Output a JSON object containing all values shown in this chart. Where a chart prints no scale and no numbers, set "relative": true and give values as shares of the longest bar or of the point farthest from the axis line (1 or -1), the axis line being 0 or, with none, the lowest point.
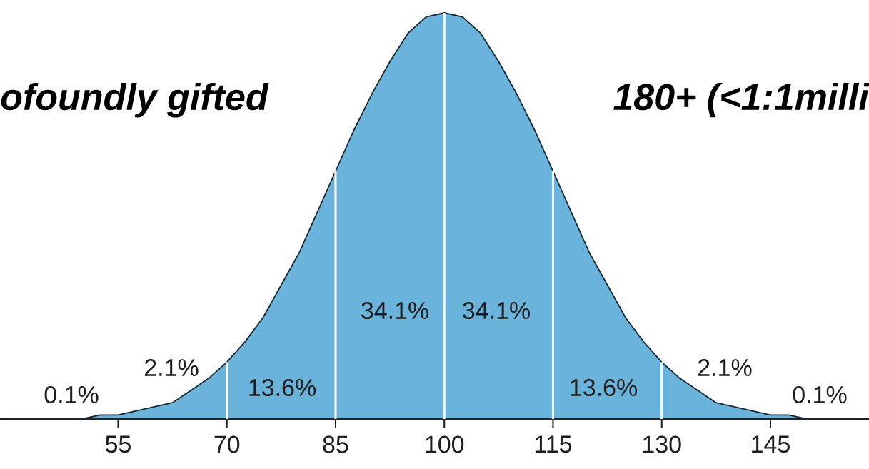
{
  "chart_data": {
    "type": "area",
    "relative": true,
    "x": [
      40,
      42.5,
      45,
      47.5,
      50,
      52.5,
      55,
      57.5,
      60,
      62.5,
      65,
      67.5,
      70,
      72.5,
      75,
      77.5,
      80,
      82.5,
      85,
      87.5,
      90,
      92.5,
      95,
      97.5,
      100,
      102.5,
      105,
      107.5,
      110,
      112.5,
      115,
      117.5,
      120,
      122.5,
      125,
      127.5,
      130,
      132.5,
      135,
      137.5,
      140,
      142.5,
      145,
      147.5,
      150,
      152.5,
      155,
      157.5
    ],
    "values": [
      0,
      0,
      0,
      0,
      0,
      0.01,
      0.01,
      0.02,
      0.03,
      0.04,
      0.07,
      0.1,
      0.14,
      0.19,
      0.25,
      0.33,
      0.41,
      0.51,
      0.61,
      0.71,
      0.8,
      0.88,
      0.95,
      0.99,
      1,
      0.99,
      0.95,
      0.88,
      0.8,
      0.71,
      0.61,
      0.51,
      0.41,
      0.33,
      0.25,
      0.19,
      0.14,
      0.1,
      0.07,
      0.04,
      0.03,
      0.02,
      0.01,
      0.01,
      0,
      0,
      0,
      0
    ],
    "color": "#6ab4dc",
    "xlim": [
      38.7,
      158.6
    ],
    "xticks": [
      55,
      70,
      85,
      100,
      115,
      130,
      145
    ],
    "ref_lines": [
      {
        "axis": "x",
        "value": 70,
        "color": "#ffffff"
      },
      {
        "axis": "x",
        "value": 85,
        "color": "#ffffff"
      },
      {
        "axis": "x",
        "value": 100,
        "color": "#ffffff"
      },
      {
        "axis": "x",
        "value": 115,
        "color": "#ffffff"
      },
      {
        "axis": "x",
        "value": 130,
        "color": "#ffffff"
      }
    ],
    "annotations": [
      "ofoundly gifted",
      "180+ (<1:1milli",
      "0.1%",
      "2.1%",
      "13.6%",
      "34.1%",
      "34.1%",
      "13.6%",
      "2.1%",
      "0.1%"
    ]
  }
}
